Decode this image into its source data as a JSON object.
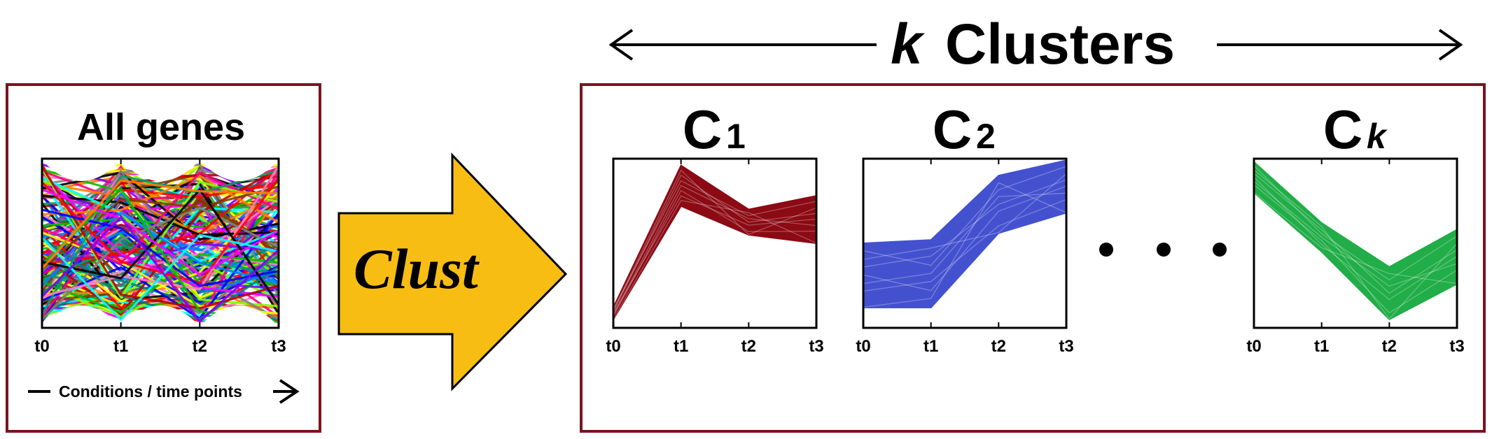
{
  "header": {
    "k": "k",
    "clusters": "Clusters"
  },
  "input_panel": {
    "title": "All genes",
    "axis_label": "Conditions / time points",
    "ticks": [
      "t0",
      "t1",
      "t2",
      "t3"
    ]
  },
  "arrow": {
    "label": "Clust",
    "color": "#f7bd12"
  },
  "clusters": [
    {
      "name": "C",
      "subscript": "1",
      "color": "#8b0a14",
      "ticks": [
        "t0",
        "t1",
        "t2",
        "t3"
      ],
      "lower": [
        0.05,
        0.72,
        0.55,
        0.5
      ],
      "upper": [
        0.12,
        0.96,
        0.7,
        0.78
      ]
    },
    {
      "name": "C",
      "subscript": "2",
      "color": "#4451cf",
      "ticks": [
        "t0",
        "t1",
        "t2",
        "t3"
      ],
      "lower": [
        0.12,
        0.12,
        0.56,
        0.68
      ],
      "upper": [
        0.5,
        0.52,
        0.9,
        0.99
      ]
    },
    {
      "name": "C",
      "subscript": "k",
      "color": "#21ad47",
      "ticks": [
        "t0",
        "t1",
        "t2",
        "t3"
      ],
      "lower": [
        0.8,
        0.45,
        0.05,
        0.26
      ],
      "upper": [
        0.98,
        0.62,
        0.36,
        0.58
      ]
    }
  ],
  "gene_colors": [
    "#ff0000",
    "#0000ff",
    "#00c000",
    "#000000",
    "#ff00ff",
    "#00ffff",
    "#ff8000",
    "#8000ff",
    "#ffff00",
    "#008080",
    "#ff0080",
    "#80ff00",
    "#804000",
    "#0080ff",
    "#c00000",
    "#00a060",
    "#808080",
    "#ff80c0"
  ]
}
